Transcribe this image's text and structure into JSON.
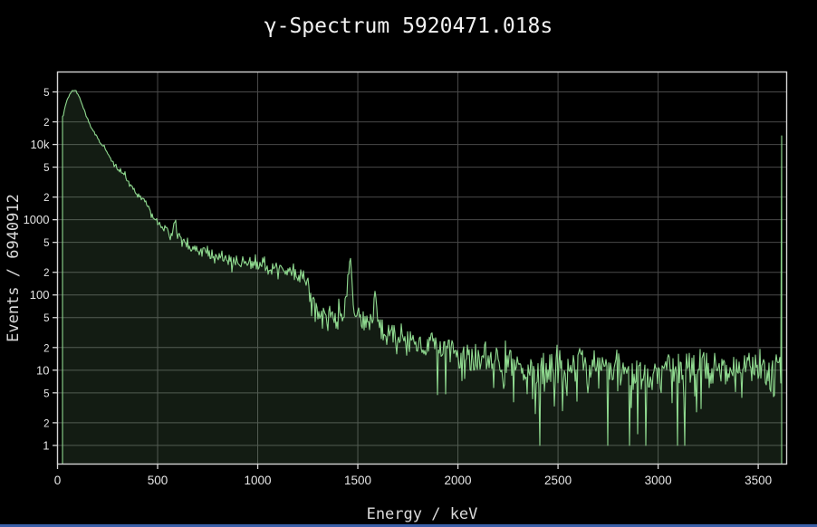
{
  "window": {
    "taskbar_strip_color": "#3a5fa8"
  },
  "chart_data": {
    "type": "area",
    "title": "γ-Spectrum 5920471.018s",
    "xlabel": "Energy / keV",
    "ylabel": "Events / 6940912",
    "total_events": 6940912,
    "measurement_time_s": 5920471.018,
    "colors": {
      "background": "#000000",
      "plot_background": "#000000",
      "grid": "#4a4a4a",
      "axis_border": "#d4d4d4",
      "tick_label": "#e6e6e6",
      "title": "#f2f2f2",
      "axis_title": "#dadada"
    },
    "x_axis": {
      "min": 0,
      "max": 3642,
      "ticks": [
        0,
        500,
        1000,
        1500,
        2000,
        2500,
        3000,
        3500
      ],
      "grid": true
    },
    "y_axis": {
      "scale": "log",
      "min": 0.565,
      "max": 92000,
      "grid": true,
      "ticks": [
        {
          "v": 1,
          "label": "1",
          "major": true
        },
        {
          "v": 2,
          "label": "2",
          "major": false
        },
        {
          "v": 5,
          "label": "5",
          "major": false
        },
        {
          "v": 10,
          "label": "10",
          "major": true
        },
        {
          "v": 20,
          "label": "2",
          "major": false
        },
        {
          "v": 50,
          "label": "5",
          "major": false
        },
        {
          "v": 100,
          "label": "100",
          "major": true
        },
        {
          "v": 200,
          "label": "2",
          "major": false
        },
        {
          "v": 500,
          "label": "5",
          "major": false
        },
        {
          "v": 1000,
          "label": "1000",
          "major": true
        },
        {
          "v": 2000,
          "label": "2",
          "major": false
        },
        {
          "v": 5000,
          "label": "5",
          "major": false
        },
        {
          "v": 10000,
          "label": "10k",
          "major": true
        },
        {
          "v": 20000,
          "label": "2",
          "major": false
        },
        {
          "v": 50000,
          "label": "5",
          "major": false
        }
      ]
    },
    "notable_peaks": [
      {
        "energy_keV": 587,
        "counts": 1050
      },
      {
        "energy_keV": 609,
        "counts": 800
      },
      {
        "energy_keV": 1461,
        "counts": 335
      },
      {
        "energy_keV": 1588,
        "counts": 125
      },
      {
        "energy_keV": 2614,
        "counts": 27
      }
    ],
    "series": [
      {
        "name": "gamma-spectrum",
        "line_color": "#8fd98f",
        "fill_color": "rgba(143,217,143,0.13)",
        "x_start_keV": 27,
        "x_end_keV": 3618,
        "noise": "poisson",
        "forced_points": [
          [
            2855,
            1
          ]
        ],
        "overflow_bin": {
          "energy_keV": 3618,
          "counts": 13000
        },
        "envelope_points": [
          [
            27,
            23000
          ],
          [
            32,
            27000
          ],
          [
            40,
            34000
          ],
          [
            50,
            41000
          ],
          [
            62,
            47000
          ],
          [
            72,
            50500
          ],
          [
            80,
            52500
          ],
          [
            88,
            53000
          ],
          [
            97,
            49500
          ],
          [
            107,
            44000
          ],
          [
            118,
            37000
          ],
          [
            130,
            30000
          ],
          [
            142,
            25000
          ],
          [
            155,
            20500
          ],
          [
            168,
            16800
          ],
          [
            182,
            14200
          ],
          [
            196,
            12600
          ],
          [
            210,
            11000
          ],
          [
            222,
            9900
          ],
          [
            238,
            9000
          ],
          [
            255,
            7300
          ],
          [
            275,
            5900
          ],
          [
            295,
            5000
          ],
          [
            318,
            4350
          ],
          [
            338,
            3900
          ],
          [
            360,
            3000
          ],
          [
            385,
            2450
          ],
          [
            405,
            2100
          ],
          [
            430,
            1800
          ],
          [
            450,
            1500
          ],
          [
            468,
            1150
          ],
          [
            485,
            950
          ],
          [
            500,
            880
          ],
          [
            535,
            720
          ],
          [
            565,
            670
          ],
          [
            578,
            700
          ],
          [
            584,
            1000
          ],
          [
            589,
            1060
          ],
          [
            595,
            720
          ],
          [
            602,
            640
          ],
          [
            607,
            790
          ],
          [
            613,
            620
          ],
          [
            628,
            480
          ],
          [
            650,
            440
          ],
          [
            680,
            405
          ],
          [
            720,
            370
          ],
          [
            770,
            335
          ],
          [
            830,
            310
          ],
          [
            890,
            295
          ],
          [
            950,
            270
          ],
          [
            1010,
            250
          ],
          [
            1070,
            230
          ],
          [
            1130,
            215
          ],
          [
            1190,
            195
          ],
          [
            1230,
            175
          ],
          [
            1248,
            130
          ],
          [
            1265,
            98
          ],
          [
            1285,
            76
          ],
          [
            1310,
            62
          ],
          [
            1345,
            55
          ],
          [
            1385,
            53
          ],
          [
            1415,
            55
          ],
          [
            1438,
            68
          ],
          [
            1448,
            130
          ],
          [
            1456,
            310
          ],
          [
            1461,
            335
          ],
          [
            1467,
            230
          ],
          [
            1476,
            95
          ],
          [
            1488,
            60
          ],
          [
            1505,
            50
          ],
          [
            1530,
            44
          ],
          [
            1555,
            42
          ],
          [
            1572,
            48
          ],
          [
            1581,
            80
          ],
          [
            1588,
            125
          ],
          [
            1595,
            78
          ],
          [
            1605,
            45
          ],
          [
            1620,
            36
          ],
          [
            1650,
            31
          ],
          [
            1690,
            28
          ],
          [
            1730,
            26
          ],
          [
            1780,
            24
          ],
          [
            1830,
            22
          ],
          [
            1880,
            20
          ],
          [
            1930,
            18
          ],
          [
            1980,
            16.5
          ],
          [
            2030,
            15.5
          ],
          [
            2090,
            15
          ],
          [
            2150,
            14
          ],
          [
            2210,
            13.5
          ],
          [
            2270,
            12.5
          ],
          [
            2330,
            11.5
          ],
          [
            2390,
            10.5
          ],
          [
            2450,
            10
          ],
          [
            2520,
            10
          ],
          [
            2570,
            10.5
          ],
          [
            2596,
            14
          ],
          [
            2608,
            26
          ],
          [
            2616,
            25
          ],
          [
            2626,
            14
          ],
          [
            2640,
            11
          ],
          [
            2690,
            9.5
          ],
          [
            2740,
            9
          ],
          [
            2800,
            8.8
          ],
          [
            2860,
            8.5
          ],
          [
            2920,
            8.8
          ],
          [
            2990,
            9.2
          ],
          [
            3060,
            9.6
          ],
          [
            3140,
            10
          ],
          [
            3220,
            10
          ],
          [
            3300,
            10
          ],
          [
            3380,
            10
          ],
          [
            3460,
            10
          ],
          [
            3540,
            10.5
          ],
          [
            3590,
            11
          ],
          [
            3615,
            12
          ]
        ]
      }
    ]
  }
}
